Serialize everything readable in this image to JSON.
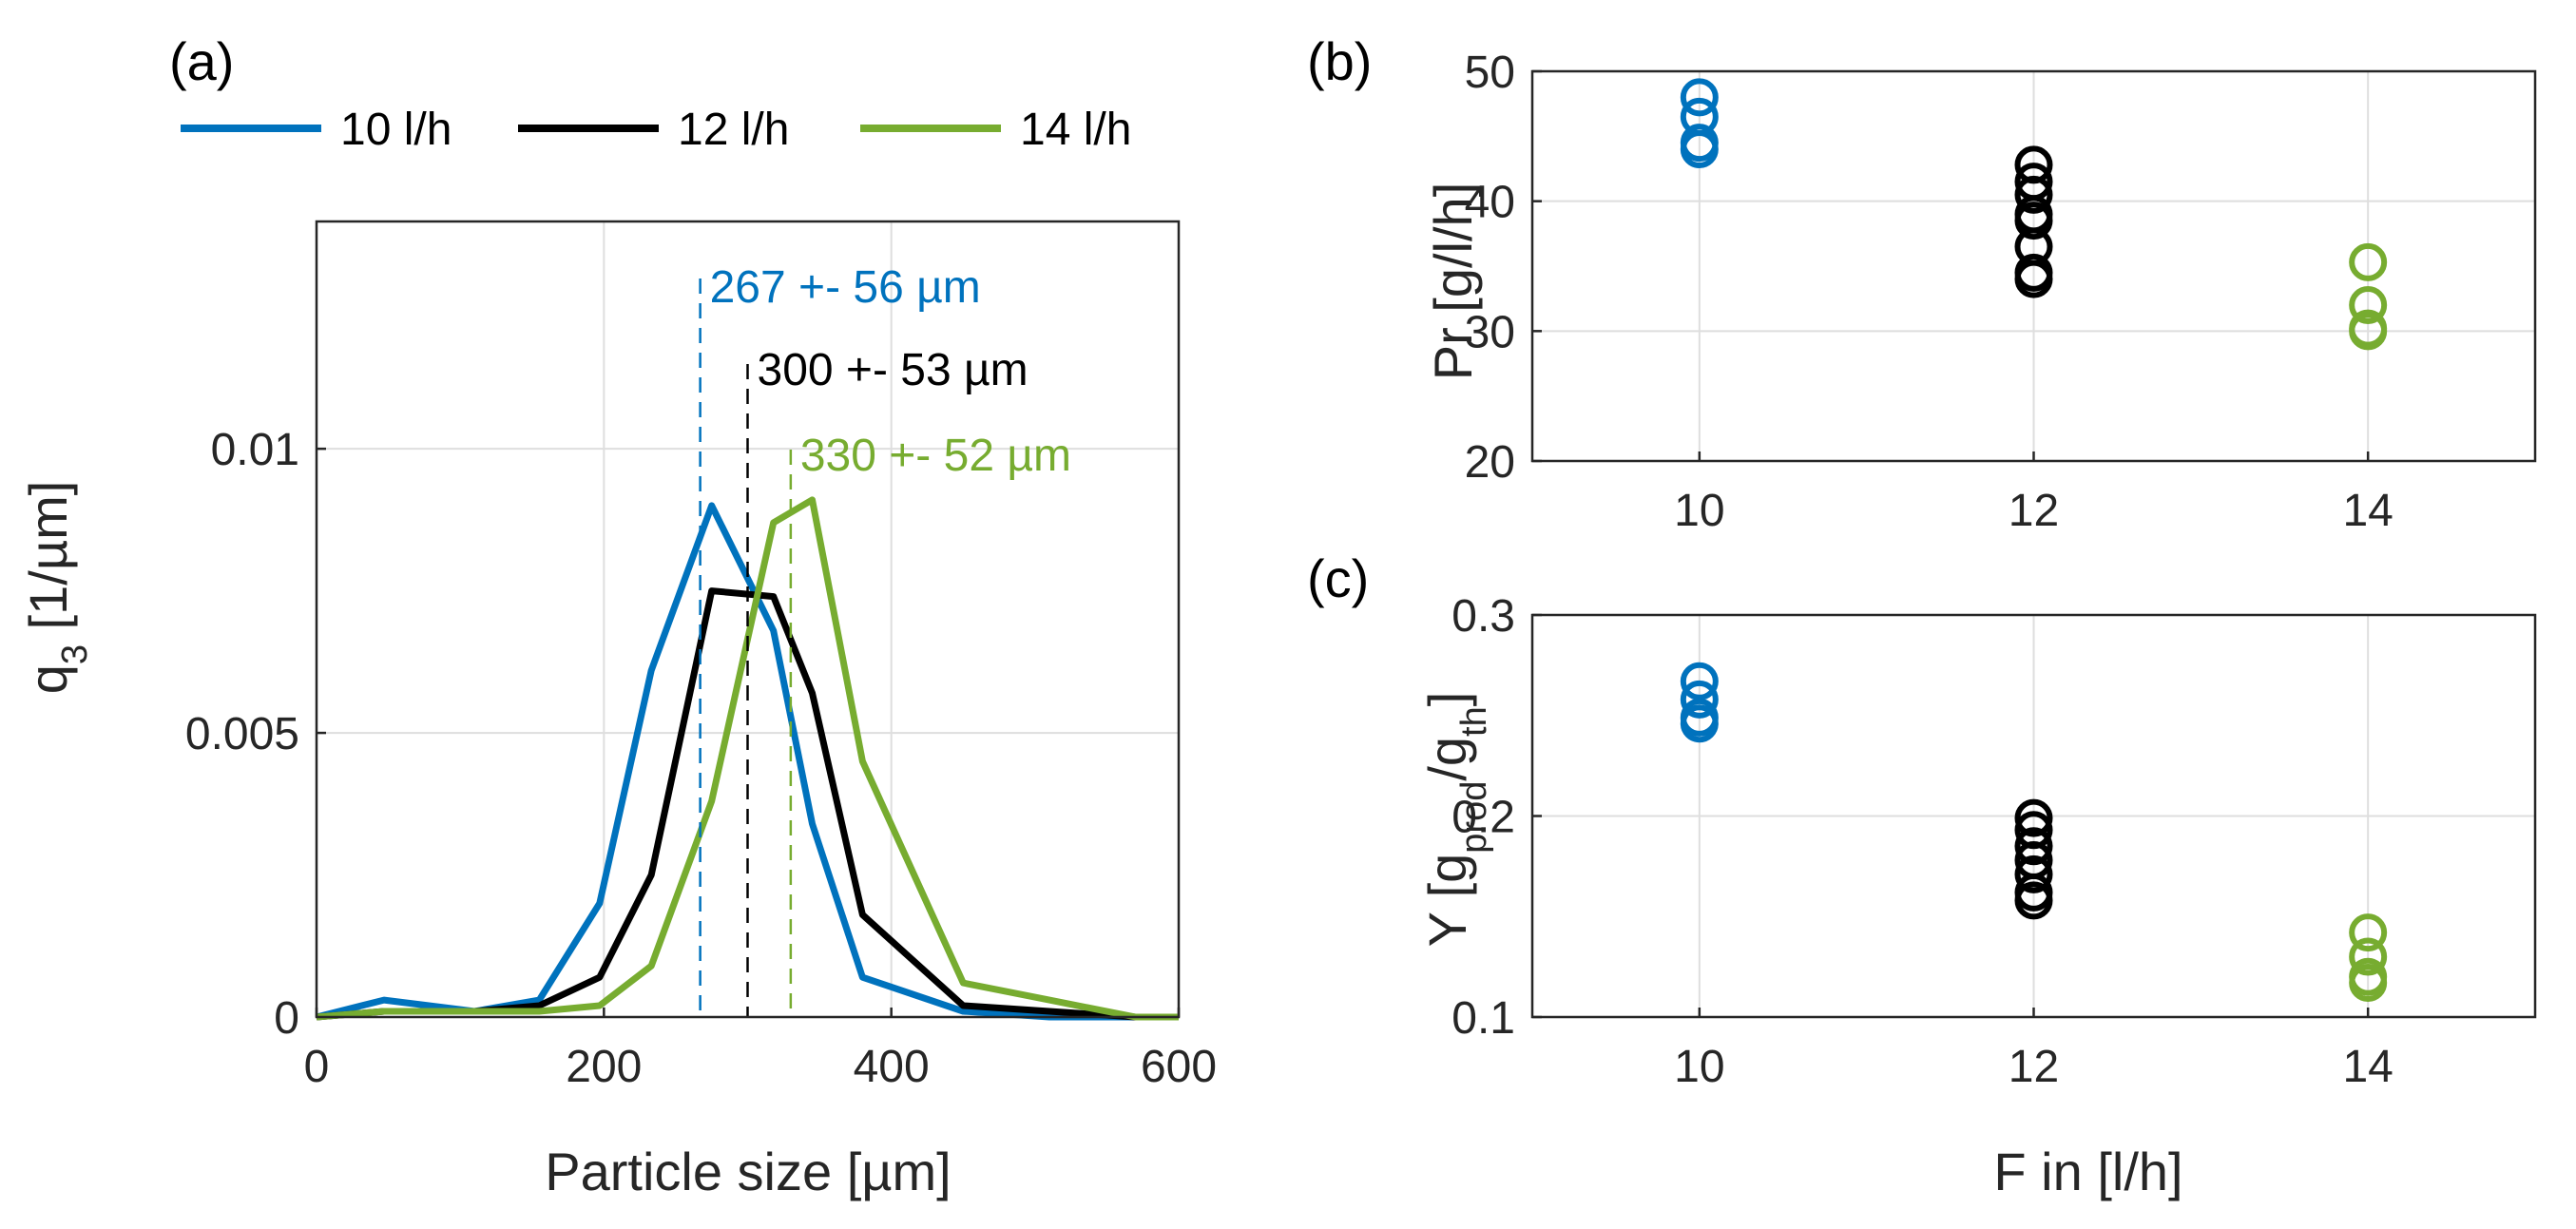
{
  "figure": {
    "colors": {
      "10 l/h": "#0072BD",
      "12 l/h": "#000000",
      "14 l/h": "#77AC30"
    }
  },
  "chart_data": [
    {
      "panel_label": "(a)",
      "type": "line",
      "xlabel": "Particle size [µm]",
      "ylabel": "q3 [1/µm]",
      "xlim": [
        0,
        600
      ],
      "ylim": [
        0,
        0.014
      ],
      "xticks": [
        0,
        200,
        400,
        600
      ],
      "xtick_labels": [
        "0",
        "200",
        "400",
        "600"
      ],
      "yticks": [
        0,
        0.005,
        0.01
      ],
      "ytick_labels": [
        "0",
        "0.005",
        "0.01"
      ],
      "grid": true,
      "legend": [
        "10 l/h",
        "12 l/h",
        "14 l/h"
      ],
      "legend_position": "top",
      "x": [
        0,
        47,
        110,
        155,
        197,
        233,
        275,
        318,
        345,
        380,
        450,
        510,
        570,
        600
      ],
      "series": [
        {
          "name": "10 l/h",
          "color": "#0072BD",
          "values": [
            0,
            0.0003,
            0.0001,
            0.0003,
            0.002,
            0.0061,
            0.009,
            0.0068,
            0.0034,
            0.0007,
            0.0001,
            0,
            0,
            0
          ]
        },
        {
          "name": "12 l/h",
          "color": "#000000",
          "values": [
            0,
            0.0001,
            0.0001,
            0.0002,
            0.0007,
            0.0025,
            0.0075,
            0.0074,
            0.0057,
            0.0018,
            0.0002,
            0.0001,
            0,
            0
          ]
        },
        {
          "name": "14 l/h",
          "color": "#77AC30",
          "values": [
            0,
            0.0001,
            0.0001,
            0.0001,
            0.0002,
            0.0009,
            0.0038,
            0.0087,
            0.0091,
            0.0045,
            0.0006,
            0.0003,
            0,
            0
          ]
        }
      ],
      "annotations": [
        {
          "text": "267 +- 56 µm",
          "x": 267,
          "color": "#0072BD"
        },
        {
          "text": "300 +- 53 µm",
          "x": 300,
          "color": "#000000"
        },
        {
          "text": "330 +- 52 µm",
          "x": 330,
          "color": "#77AC30"
        }
      ]
    },
    {
      "panel_label": "(b)",
      "type": "scatter",
      "xlabel": "",
      "ylabel": "Pr [g/l/h]",
      "xlim": [
        9,
        15
      ],
      "ylim": [
        20,
        50
      ],
      "xticks": [
        10,
        12,
        14
      ],
      "xtick_labels": [
        "10",
        "12",
        "14"
      ],
      "yticks": [
        20,
        30,
        40,
        50
      ],
      "ytick_labels": [
        "20",
        "30",
        "40",
        "50"
      ],
      "grid": true,
      "series": [
        {
          "name": "10 l/h",
          "color": "#0072BD",
          "x": [
            10,
            10,
            10,
            10
          ],
          "values": [
            48,
            46.5,
            44.5,
            44
          ]
        },
        {
          "name": "12 l/h",
          "color": "#000000",
          "x": [
            12,
            12,
            12,
            12,
            12,
            12,
            12,
            12
          ],
          "values": [
            42.8,
            41.5,
            40.5,
            39,
            38.5,
            36.5,
            34.5,
            34
          ]
        },
        {
          "name": "14 l/h",
          "color": "#77AC30",
          "x": [
            14,
            14,
            14,
            14
          ],
          "values": [
            35.3,
            32,
            30.2,
            30
          ]
        }
      ]
    },
    {
      "panel_label": "(c)",
      "type": "scatter",
      "xlabel": "F in [l/h]",
      "ylabel": "Y [gprod/gth]",
      "xlim": [
        9,
        15
      ],
      "ylim": [
        0.1,
        0.3
      ],
      "xticks": [
        10,
        12,
        14
      ],
      "xtick_labels": [
        "10",
        "12",
        "14"
      ],
      "yticks": [
        0.1,
        0.2,
        0.3
      ],
      "ytick_labels": [
        "0.1",
        "0.2",
        "0.3"
      ],
      "grid": true,
      "series": [
        {
          "name": "10 l/h",
          "color": "#0072BD",
          "x": [
            10,
            10,
            10,
            10
          ],
          "values": [
            0.267,
            0.258,
            0.249,
            0.246
          ]
        },
        {
          "name": "12 l/h",
          "color": "#000000",
          "x": [
            12,
            12,
            12,
            12,
            12,
            12,
            12
          ],
          "values": [
            0.199,
            0.193,
            0.185,
            0.178,
            0.171,
            0.162,
            0.158
          ]
        },
        {
          "name": "14 l/h",
          "color": "#77AC30",
          "x": [
            14,
            14,
            14,
            14
          ],
          "values": [
            0.142,
            0.13,
            0.12,
            0.117
          ]
        }
      ]
    }
  ]
}
